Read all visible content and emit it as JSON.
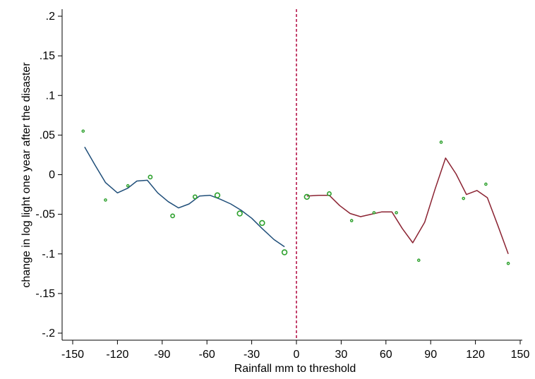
{
  "chart_data": {
    "type": "line",
    "title": "",
    "xlabel": "Rainfall mm to threshold",
    "ylabel": "change in log light one year after the disaster",
    "xlim": [
      -150,
      150
    ],
    "ylim": [
      -0.2,
      0.2
    ],
    "x_ticks": [
      -150,
      -120,
      -90,
      -60,
      -30,
      0,
      30,
      60,
      90,
      120,
      150
    ],
    "x_tick_labels": [
      "-150",
      "-120",
      "-90",
      "-60",
      "-30",
      "0",
      "30",
      "60",
      "90",
      "120",
      "150"
    ],
    "y_ticks": [
      0.2,
      0.15,
      0.1,
      0.05,
      0,
      -0.05,
      -0.1,
      -0.15,
      -0.2
    ],
    "y_tick_labels": [
      ".2",
      ".15",
      ".1",
      ".05",
      "0",
      "-.05",
      "-.1",
      "-.15",
      "-.2"
    ],
    "threshold_line": {
      "x": 0,
      "color": "#b5174b",
      "style": "dashed"
    },
    "grid": false,
    "series": [
      {
        "type": "line",
        "color": "#1f4e79",
        "x": [
          -142,
          -135,
          -128,
          -120,
          -113,
          -107,
          -100,
          -93,
          -86,
          -79,
          -72,
          -65,
          -58,
          -51,
          -44,
          -37,
          -30,
          -23,
          -15,
          -8
        ],
        "y": [
          0.035,
          0.012,
          -0.01,
          -0.023,
          -0.017,
          -0.008,
          -0.007,
          -0.023,
          -0.034,
          -0.042,
          -0.037,
          -0.027,
          -0.026,
          -0.031,
          -0.037,
          -0.045,
          -0.055,
          -0.068,
          -0.082,
          -0.091
        ]
      },
      {
        "type": "line",
        "color": "#8b2332",
        "x": [
          7,
          15,
          22,
          29,
          36,
          43,
          50,
          57,
          64,
          71,
          78,
          86,
          93,
          100,
          107,
          114,
          121,
          128,
          135,
          142
        ],
        "y": [
          -0.027,
          -0.026,
          -0.026,
          -0.039,
          -0.049,
          -0.053,
          -0.05,
          -0.047,
          -0.047,
          -0.068,
          -0.086,
          -0.06,
          -0.018,
          0.021,
          0.001,
          -0.025,
          -0.02,
          -0.029,
          -0.064,
          -0.1
        ]
      },
      {
        "type": "scatter",
        "color": "#2ca02c",
        "x": [
          -143,
          -128,
          -113,
          -98,
          -83,
          -68,
          -53,
          -38,
          -23,
          -8,
          7,
          22,
          37,
          52,
          67,
          82,
          97,
          112,
          127,
          142
        ],
        "y": [
          0.055,
          -0.032,
          -0.014,
          -0.003,
          -0.052,
          -0.028,
          -0.026,
          -0.049,
          -0.061,
          -0.098,
          -0.028,
          -0.024,
          -0.058,
          -0.048,
          -0.048,
          -0.108,
          0.041,
          -0.03,
          -0.012,
          -0.112
        ],
        "size": [
          1,
          1,
          1,
          2,
          2,
          2,
          3,
          3,
          3,
          3,
          3,
          2,
          1,
          1,
          1,
          1,
          1,
          1,
          1,
          1
        ]
      }
    ]
  }
}
